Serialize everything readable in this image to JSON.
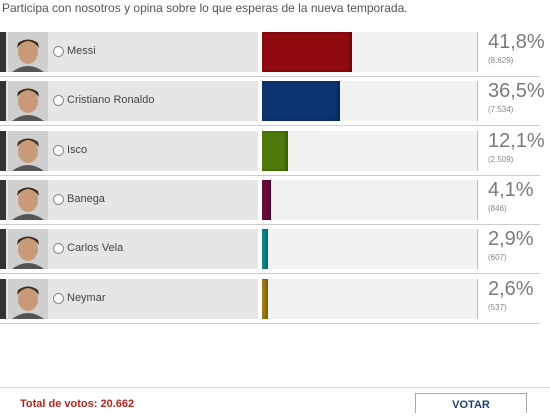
{
  "intro": "Participa con nosotros y opina sobre lo que esperas de la nueva temporada.",
  "options": [
    {
      "name": "Messi",
      "percent": 41.8,
      "percent_label": "41,8%",
      "votes": 8629,
      "votes_label": "(8.629)",
      "color": "#8e0a0e"
    },
    {
      "name": "Cristiano Ronaldo",
      "percent": 36.5,
      "percent_label": "36,5%",
      "votes": 7534,
      "votes_label": "(7.534)",
      "color": "#0b3471"
    },
    {
      "name": "Isco",
      "percent": 12.1,
      "percent_label": "12,1%",
      "votes": 2509,
      "votes_label": "(2.509)",
      "color": "#4f7a0c"
    },
    {
      "name": "Banega",
      "percent": 4.1,
      "percent_label": "4,1%",
      "votes": 846,
      "votes_label": "(846)",
      "color": "#6b0c3c"
    },
    {
      "name": "Carlos Vela",
      "percent": 2.9,
      "percent_label": "2,9%",
      "votes": 607,
      "votes_label": "(607)",
      "color": "#0e8a8a"
    },
    {
      "name": "Neymar",
      "percent": 2.6,
      "percent_label": "2,6%",
      "votes": 537,
      "votes_label": "(537)",
      "color": "#a27c12"
    }
  ],
  "total": "Total de votos: 20.662",
  "button": "VOTAR"
}
